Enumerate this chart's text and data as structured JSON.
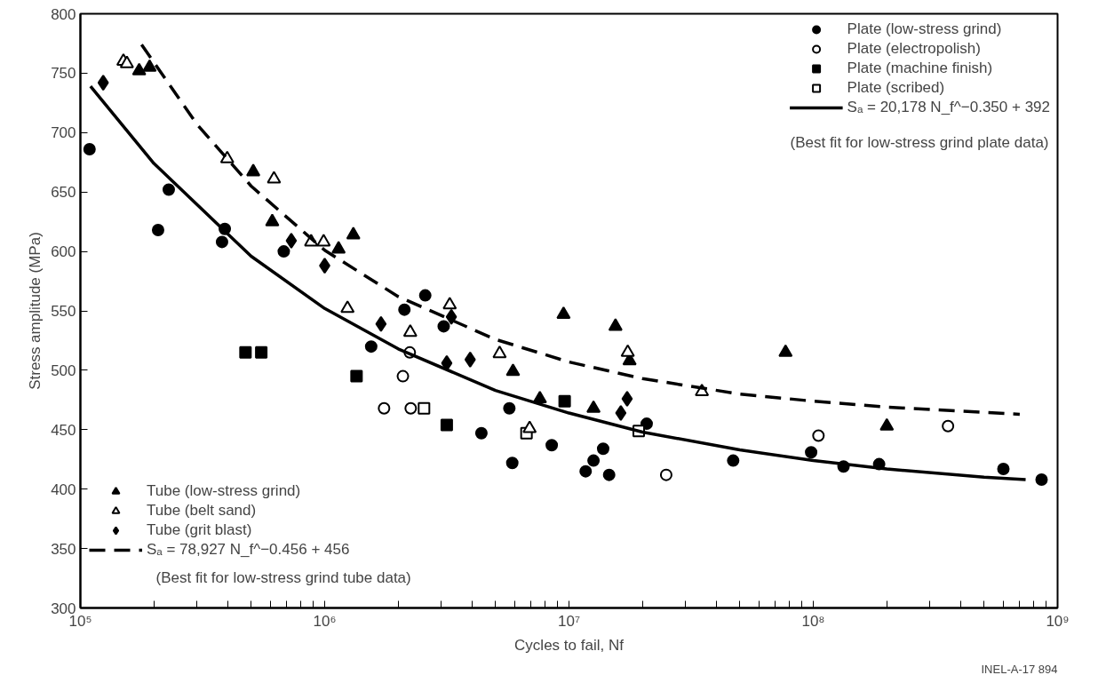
{
  "chart_data": {
    "type": "scatter",
    "xlabel": "Cycles to fail, Nf",
    "ylabel": "Stress amplitude (MPa)",
    "log": "x",
    "xlim": [
      100000,
      1000000000
    ],
    "ylim": [
      300,
      800
    ],
    "xticks": [
      {
        "value": 100000,
        "label": "10⁵"
      },
      {
        "value": 200000,
        "label": null
      },
      {
        "value": 300000,
        "label": null
      },
      {
        "value": 400000,
        "label": null
      },
      {
        "value": 500000,
        "label": null
      },
      {
        "value": 600000,
        "label": null
      },
      {
        "value": 700000,
        "label": null
      },
      {
        "value": 800000,
        "label": null
      },
      {
        "value": 900000,
        "label": null
      },
      {
        "value": 1000000,
        "label": "10⁶"
      },
      {
        "value": 2000000,
        "label": null
      },
      {
        "value": 3000000,
        "label": null
      },
      {
        "value": 4000000,
        "label": null
      },
      {
        "value": 5000000,
        "label": null
      },
      {
        "value": 6000000,
        "label": null
      },
      {
        "value": 7000000,
        "label": null
      },
      {
        "value": 8000000,
        "label": null
      },
      {
        "value": 9000000,
        "label": null
      },
      {
        "value": 10000000,
        "label": "10⁷"
      },
      {
        "value": 20000000,
        "label": null
      },
      {
        "value": 30000000,
        "label": null
      },
      {
        "value": 40000000,
        "label": null
      },
      {
        "value": 50000000,
        "label": null
      },
      {
        "value": 60000000,
        "label": null
      },
      {
        "value": 70000000,
        "label": null
      },
      {
        "value": 80000000,
        "label": null
      },
      {
        "value": 90000000,
        "label": null
      },
      {
        "value": 100000000,
        "label": "10⁸"
      },
      {
        "value": 200000000,
        "label": null
      },
      {
        "value": 300000000,
        "label": null
      },
      {
        "value": 400000000,
        "label": null
      },
      {
        "value": 500000000,
        "label": null
      },
      {
        "value": 600000000,
        "label": null
      },
      {
        "value": 700000000,
        "label": null
      },
      {
        "value": 800000000,
        "label": null
      },
      {
        "value": 900000000,
        "label": null
      },
      {
        "value": 1000000000,
        "label": "10⁹"
      }
    ],
    "yticks": [
      300,
      350,
      400,
      450,
      500,
      550,
      600,
      650,
      700,
      750,
      800
    ],
    "grid": false,
    "legend": "top right",
    "series": [
      {
        "name": "Plate (low-stress grind)",
        "marker": "circle",
        "color": "#000000",
        "x": [
          109000,
          230000,
          208000,
          390000,
          380000,
          680000,
          2120000,
          1550000,
          2580000,
          3070000,
          5700000,
          4380000,
          8500000,
          5860000,
          13800000,
          12600000,
          11700000,
          14600000,
          20800000,
          47000000,
          98000000,
          133000000,
          186000000,
          600000000,
          860000000
        ],
        "values": [
          686,
          652,
          618,
          619,
          608,
          600,
          551,
          520,
          563,
          537,
          468,
          447,
          437,
          422,
          434,
          424,
          415,
          412,
          455,
          424,
          431,
          419,
          421,
          417,
          408
        ]
      },
      {
        "name": "Plate (electropolish)",
        "marker": "circle",
        "color": "#ffffff",
        "x": [
          2230000,
          2090000,
          1750000,
          2250000,
          25000000,
          105000000,
          356000000
        ],
        "values": [
          515,
          495,
          468,
          468,
          412,
          445,
          453
        ]
      },
      {
        "name": "Plate (machine finish)",
        "marker": "square",
        "color": "#000000",
        "x": [
          474000,
          550000,
          1350000,
          3160000,
          9600000
        ],
        "values": [
          515,
          515,
          495,
          454,
          474
        ]
      },
      {
        "name": "Plate (scribed)",
        "marker": "square",
        "color": "#ffffff",
        "x": [
          2550000,
          6700000,
          19300000
        ],
        "values": [
          468,
          447,
          449
        ]
      },
      {
        "name": "Sₐ = 20,178 N_f^−0.350 + 392",
        "type": "line",
        "line_style": "solid",
        "color": "#000000",
        "x": [
          110000,
          200000,
          500000,
          1000000,
          2000000,
          5000000,
          10000000,
          20000000,
          50000000,
          100000000,
          200000000,
          500000000,
          740000000
        ],
        "values": [
          739,
          674,
          596,
          552,
          518,
          483,
          464,
          448,
          433,
          424,
          417,
          410,
          408
        ]
      },
      {
        "name": "Tube (low-stress grind)",
        "marker": "triangle",
        "color": "#000000",
        "x": [
          174000,
          192000,
          510000,
          610000,
          1140000,
          1310000,
          9500000,
          15500000,
          5900000,
          7600000,
          12600000,
          17700000,
          77000000,
          200000000
        ],
        "values": [
          752,
          755,
          667,
          625,
          602,
          614,
          547,
          537,
          499,
          476,
          468,
          508,
          515,
          453
        ]
      },
      {
        "name": "Tube (belt sand)",
        "marker": "triangle",
        "color": "#ffffff",
        "x": [
          150000,
          155000,
          399000,
          620000,
          880000,
          990000,
          1240000,
          2240000,
          3250000,
          5200000,
          6900000,
          17400000,
          35000000
        ],
        "values": [
          760,
          758,
          678,
          661,
          608,
          608,
          552,
          532,
          555,
          514,
          451,
          515,
          482
        ]
      },
      {
        "name": "Tube (grit blast)",
        "marker": "diamond",
        "color": "#000000",
        "x": [
          124000,
          730000,
          1000000,
          1700000,
          3300000,
          3160000,
          3940000,
          17300000,
          16300000
        ],
        "values": [
          742,
          609,
          588,
          539,
          545,
          506,
          509,
          476,
          464
        ]
      },
      {
        "name": "Sₐ = 78,927 N_f^−0.456 + 456",
        "type": "line",
        "line_style": "dashed",
        "color": "#000000",
        "x": [
          178000,
          300000,
          500000,
          1000000,
          2000000,
          5000000,
          10000000,
          20000000,
          50000000,
          100000000,
          200000000,
          700000000
        ],
        "values": [
          774,
          707,
          655,
          601,
          562,
          526,
          507,
          493,
          480,
          474,
          469,
          463
        ]
      }
    ],
    "annotations": [
      "(Best fit for low-stress grind plate data)",
      "(Best fit for low-stress grind tube data)",
      "INEL-A-17 894"
    ]
  }
}
